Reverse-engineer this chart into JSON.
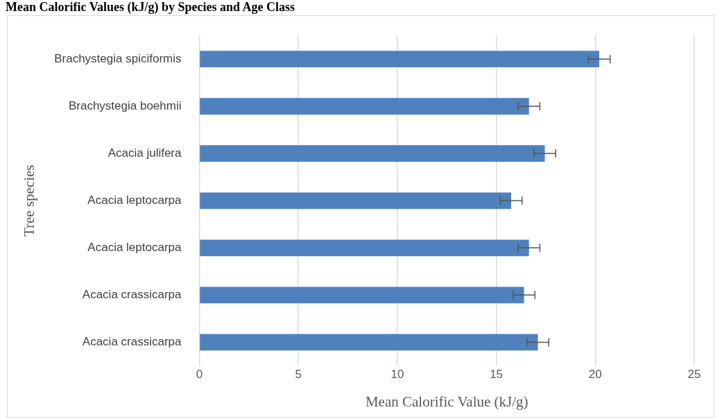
{
  "chart_data": {
    "type": "bar",
    "orientation": "horizontal",
    "title": "Mean Calorific Values (kJ/g) by Species and Age Class",
    "categories": [
      "Brachystegia spiciformis",
      "Brachystegia boehmii",
      "Acacia julifera",
      "Acacia leptocarpa",
      "Acacia leptocarpa",
      "Acacia crassicarpa",
      "Acacia crassicarpa"
    ],
    "values": [
      20.2,
      16.65,
      17.45,
      15.75,
      16.65,
      16.4,
      17.1
    ],
    "errors": [
      0.55,
      0.55,
      0.55,
      0.55,
      0.55,
      0.55,
      0.55
    ],
    "color": "#4f81bd",
    "xlim": [
      0,
      25
    ],
    "xticks": [
      0,
      5,
      10,
      15,
      20,
      25
    ],
    "grid": "x",
    "xlabel": "Mean Calorific Value (kJ/g)",
    "ylabel": "Tree species"
  }
}
